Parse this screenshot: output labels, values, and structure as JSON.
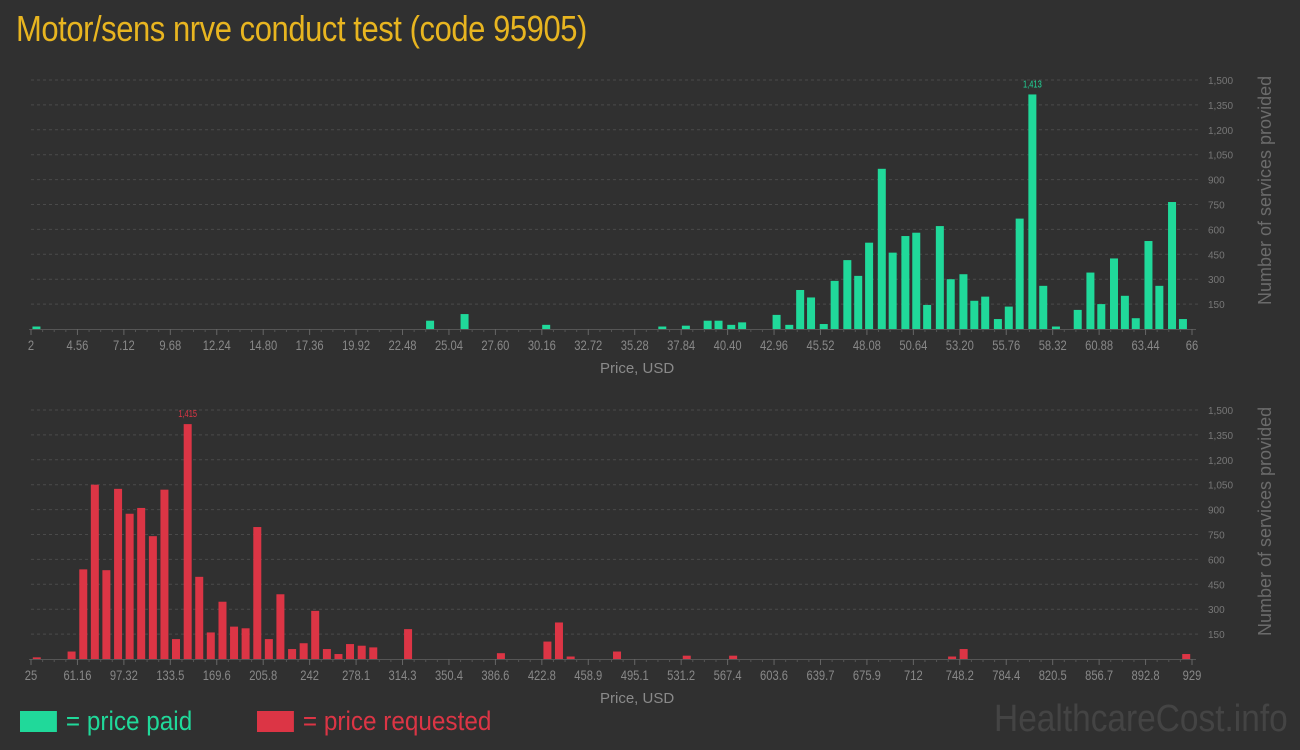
{
  "title": "Motor/sens nrve conduct test (code 95905)",
  "colors": {
    "paid": "#20d99a",
    "requested": "#dc3545",
    "title": "#e8b520",
    "background": "#303030"
  },
  "legend": {
    "paid_label": "= price paid",
    "requested_label": "= price requested"
  },
  "watermark": "HealthcareCost.info",
  "chart_data": [
    {
      "type": "bar",
      "title": "Price paid",
      "xlabel": "Price, USD",
      "ylabel": "Number of services provided",
      "ylim": [
        0,
        1500
      ],
      "yticks": [
        150,
        300,
        450,
        600,
        750,
        900,
        1050,
        1200,
        1350,
        1500
      ],
      "ytick_labels": [
        "150",
        "300",
        "450",
        "600",
        "750",
        "900",
        "1,050",
        "1,200",
        "1,350",
        "1,500"
      ],
      "xlim": [
        2,
        66
      ],
      "xtick_labels": [
        "2",
        "4.56",
        "7.12",
        "9.68",
        "12.24",
        "14.80",
        "17.36",
        "19.92",
        "22.48",
        "25.04",
        "27.60",
        "30.16",
        "32.72",
        "35.28",
        "37.84",
        "40.40",
        "42.96",
        "45.52",
        "48.08",
        "50.64",
        "53.20",
        "55.76",
        "58.32",
        "60.88",
        "63.44",
        "66"
      ],
      "grid": true,
      "peak_annotation": "1,413",
      "color": "#20d99a",
      "x": [
        2.3,
        24.0,
        25.9,
        30.4,
        36.8,
        38.1,
        39.3,
        39.9,
        40.6,
        41.2,
        43.1,
        43.8,
        44.4,
        45.0,
        45.7,
        46.3,
        47.0,
        47.6,
        48.2,
        48.9,
        49.5,
        50.2,
        50.8,
        51.4,
        52.1,
        52.7,
        53.4,
        54.0,
        54.6,
        55.3,
        55.9,
        56.5,
        57.2,
        57.8,
        58.5,
        59.7,
        60.4,
        61.0,
        61.7,
        62.3,
        62.9,
        63.6,
        64.2,
        64.9,
        65.5
      ],
      "values": [
        15,
        50,
        90,
        25,
        15,
        20,
        50,
        50,
        25,
        40,
        85,
        25,
        235,
        190,
        30,
        290,
        415,
        320,
        520,
        965,
        460,
        560,
        580,
        145,
        620,
        300,
        330,
        170,
        195,
        60,
        135,
        665,
        1413,
        260,
        15,
        115,
        340,
        150,
        425,
        200,
        65,
        530,
        260,
        765,
        60
      ]
    },
    {
      "type": "bar",
      "title": "Price requested",
      "xlabel": "Price, USD",
      "ylabel": "Number of services provided",
      "ylim": [
        0,
        1500
      ],
      "yticks": [
        150,
        300,
        450,
        600,
        750,
        900,
        1050,
        1200,
        1350,
        1500
      ],
      "ytick_labels": [
        "150",
        "300",
        "450",
        "600",
        "750",
        "900",
        "1,050",
        "1,200",
        "1,350",
        "1,500"
      ],
      "xlim": [
        25,
        929
      ],
      "xtick_labels": [
        "25",
        "61.16",
        "97.32",
        "133.5",
        "169.6",
        "205.8",
        "242",
        "278.1",
        "314.3",
        "350.4",
        "386.6",
        "422.8",
        "458.9",
        "495.1",
        "531.2",
        "567.4",
        "603.6",
        "639.7",
        "675.9",
        "712",
        "748.2",
        "784.4",
        "820.5",
        "856.7",
        "892.8",
        "929"
      ],
      "grid": true,
      "peak_annotation": "1,415",
      "color": "#dc3545",
      "x": [
        29.5,
        56.6,
        65.7,
        74.7,
        83.7,
        92.8,
        101.8,
        110.8,
        119.9,
        128.9,
        137.9,
        147.0,
        156.0,
        165.0,
        174.1,
        183.1,
        192.1,
        201.2,
        210.2,
        219.2,
        228.3,
        237.3,
        246.3,
        255.4,
        264.4,
        273.4,
        282.5,
        291.5,
        318.6,
        390.9,
        427.1,
        436.1,
        445.2,
        481.3,
        535.6,
        571.7,
        742.2,
        751.2,
        924.5
      ],
      "values": [
        10,
        45,
        540,
        1050,
        535,
        1025,
        875,
        910,
        740,
        1020,
        120,
        1415,
        495,
        160,
        345,
        195,
        185,
        795,
        120,
        390,
        60,
        95,
        290,
        60,
        30,
        90,
        80,
        70,
        180,
        35,
        105,
        220,
        15,
        45,
        20,
        20,
        15,
        60,
        30
      ]
    }
  ]
}
